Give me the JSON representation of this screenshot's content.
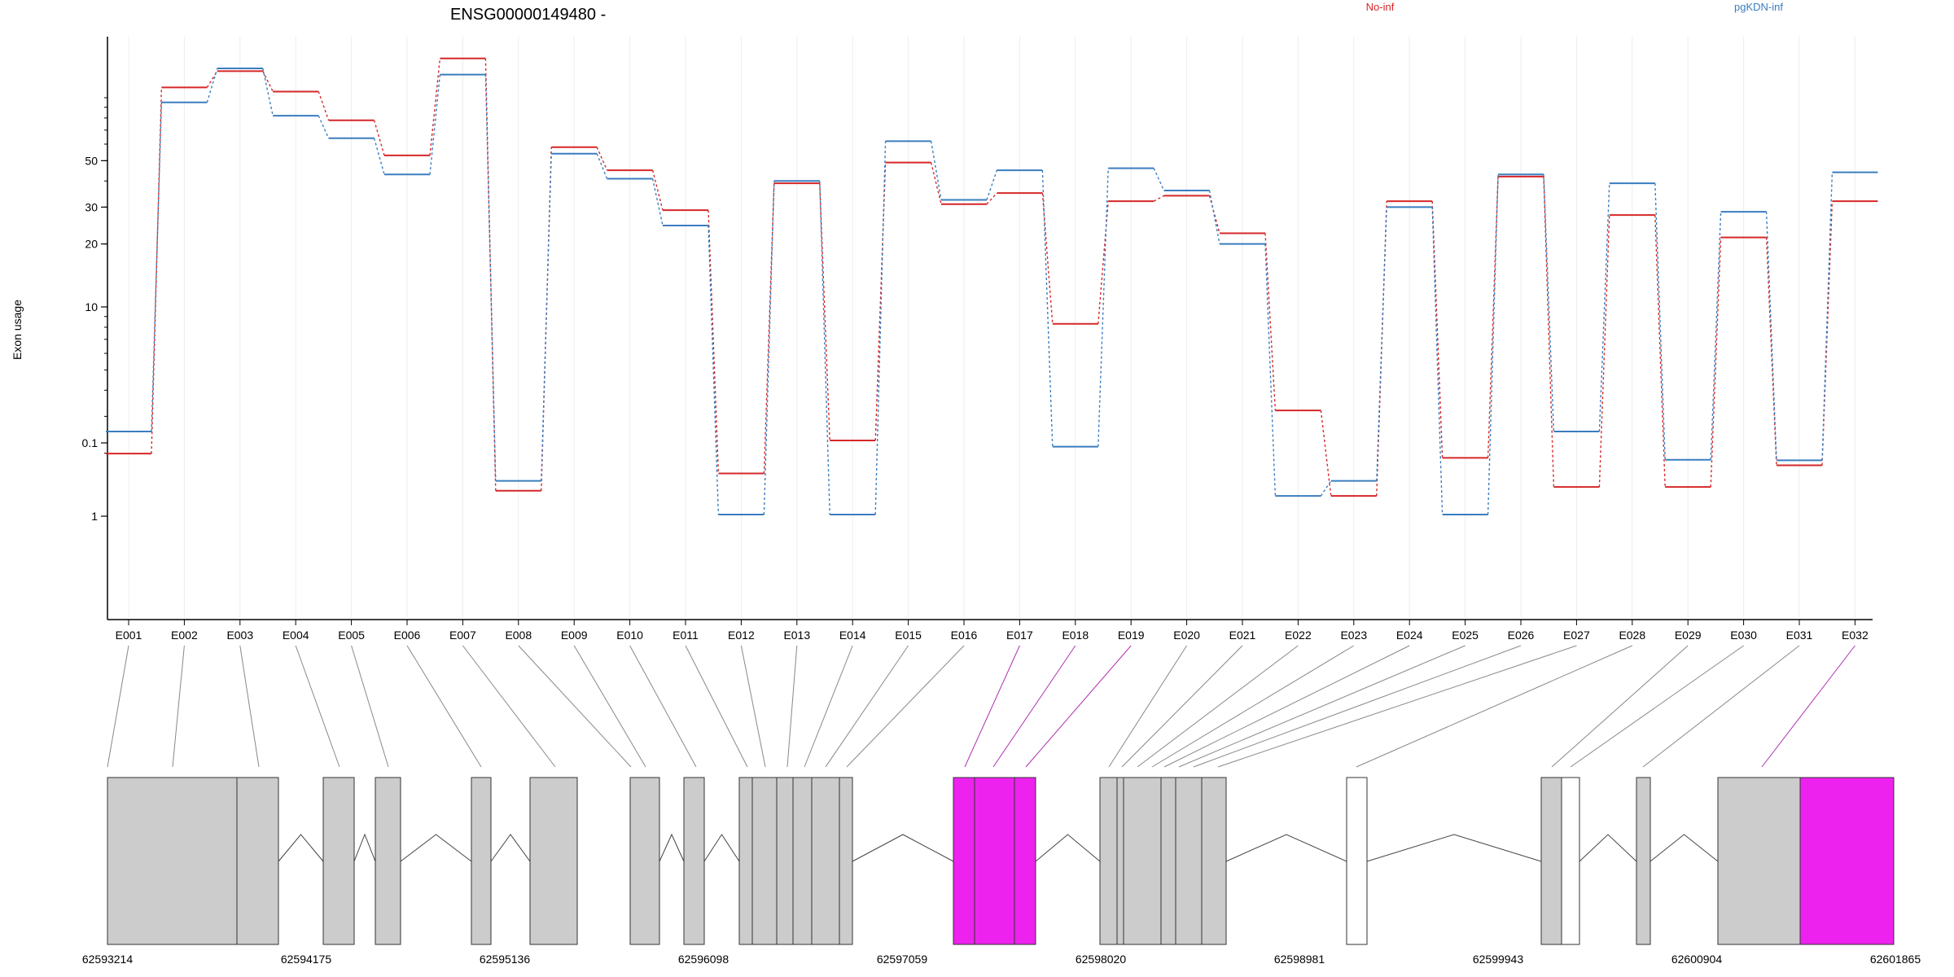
{
  "chart_data": {
    "type": "line",
    "title": "ENSG00000149480 -",
    "ylabel": "Exon usage",
    "xlabel": "",
    "y_scale": "log",
    "y_ticks": [
      {
        "value": 0.1,
        "label": "0.1"
      },
      {
        "value": 1,
        "label": "1"
      },
      {
        "value": 10,
        "label": "10"
      },
      {
        "value": 20,
        "label": "20"
      },
      {
        "value": 30,
        "label": "30"
      },
      {
        "value": 50,
        "label": "50"
      }
    ],
    "legend_placement": "top-right",
    "categories": [
      "E001",
      "E002",
      "E003",
      "E004",
      "E005",
      "E006",
      "E007",
      "E008",
      "E009",
      "E010",
      "E011",
      "E012",
      "E013",
      "E014",
      "E015",
      "E016",
      "E017",
      "E018",
      "E019",
      "E020",
      "E021",
      "E022",
      "E023",
      "E024",
      "E025",
      "E026",
      "E027",
      "E028",
      "E029",
      "E030",
      "E031",
      "E032"
    ],
    "series": [
      {
        "name": "No-inf",
        "color": "#d62728",
        "style": "solid-steps",
        "values": [
          0.14,
          112,
          134,
          107,
          78,
          53,
          154,
          0.45,
          58,
          45,
          29,
          1.6,
          39,
          2.3,
          49,
          31,
          35,
          8.3,
          32,
          34,
          22.5,
          3.2,
          1.25,
          32,
          1.9,
          42,
          0.4,
          27.5,
          0.4,
          21.5,
          1.75,
          32
        ]
      },
      {
        "name": "pgKDN-inf",
        "color": "#3a7dbf",
        "style": "solid-steps",
        "values": [
          0.07,
          95,
          138,
          82,
          64,
          43,
          129,
          0.33,
          54,
          41,
          24.5,
          0.95,
          40,
          0.95,
          62,
          32.5,
          45,
          2.15,
          46,
          36,
          20,
          1.25,
          0.33,
          30,
          0.95,
          43,
          0.07,
          39,
          0.17,
          28.5,
          1.85,
          44
        ]
      }
    ]
  },
  "gene_track": {
    "coordinate_labels": [
      "62593214",
      "62594175",
      "62595136",
      "62596098",
      "62597059",
      "62598020",
      "62598981",
      "62599943",
      "62600904",
      "62601865"
    ],
    "colors": {
      "exon": "#cccccc",
      "highlight": "#ee22ee",
      "empty": "#ffffff",
      "outline": "#333333"
    }
  }
}
